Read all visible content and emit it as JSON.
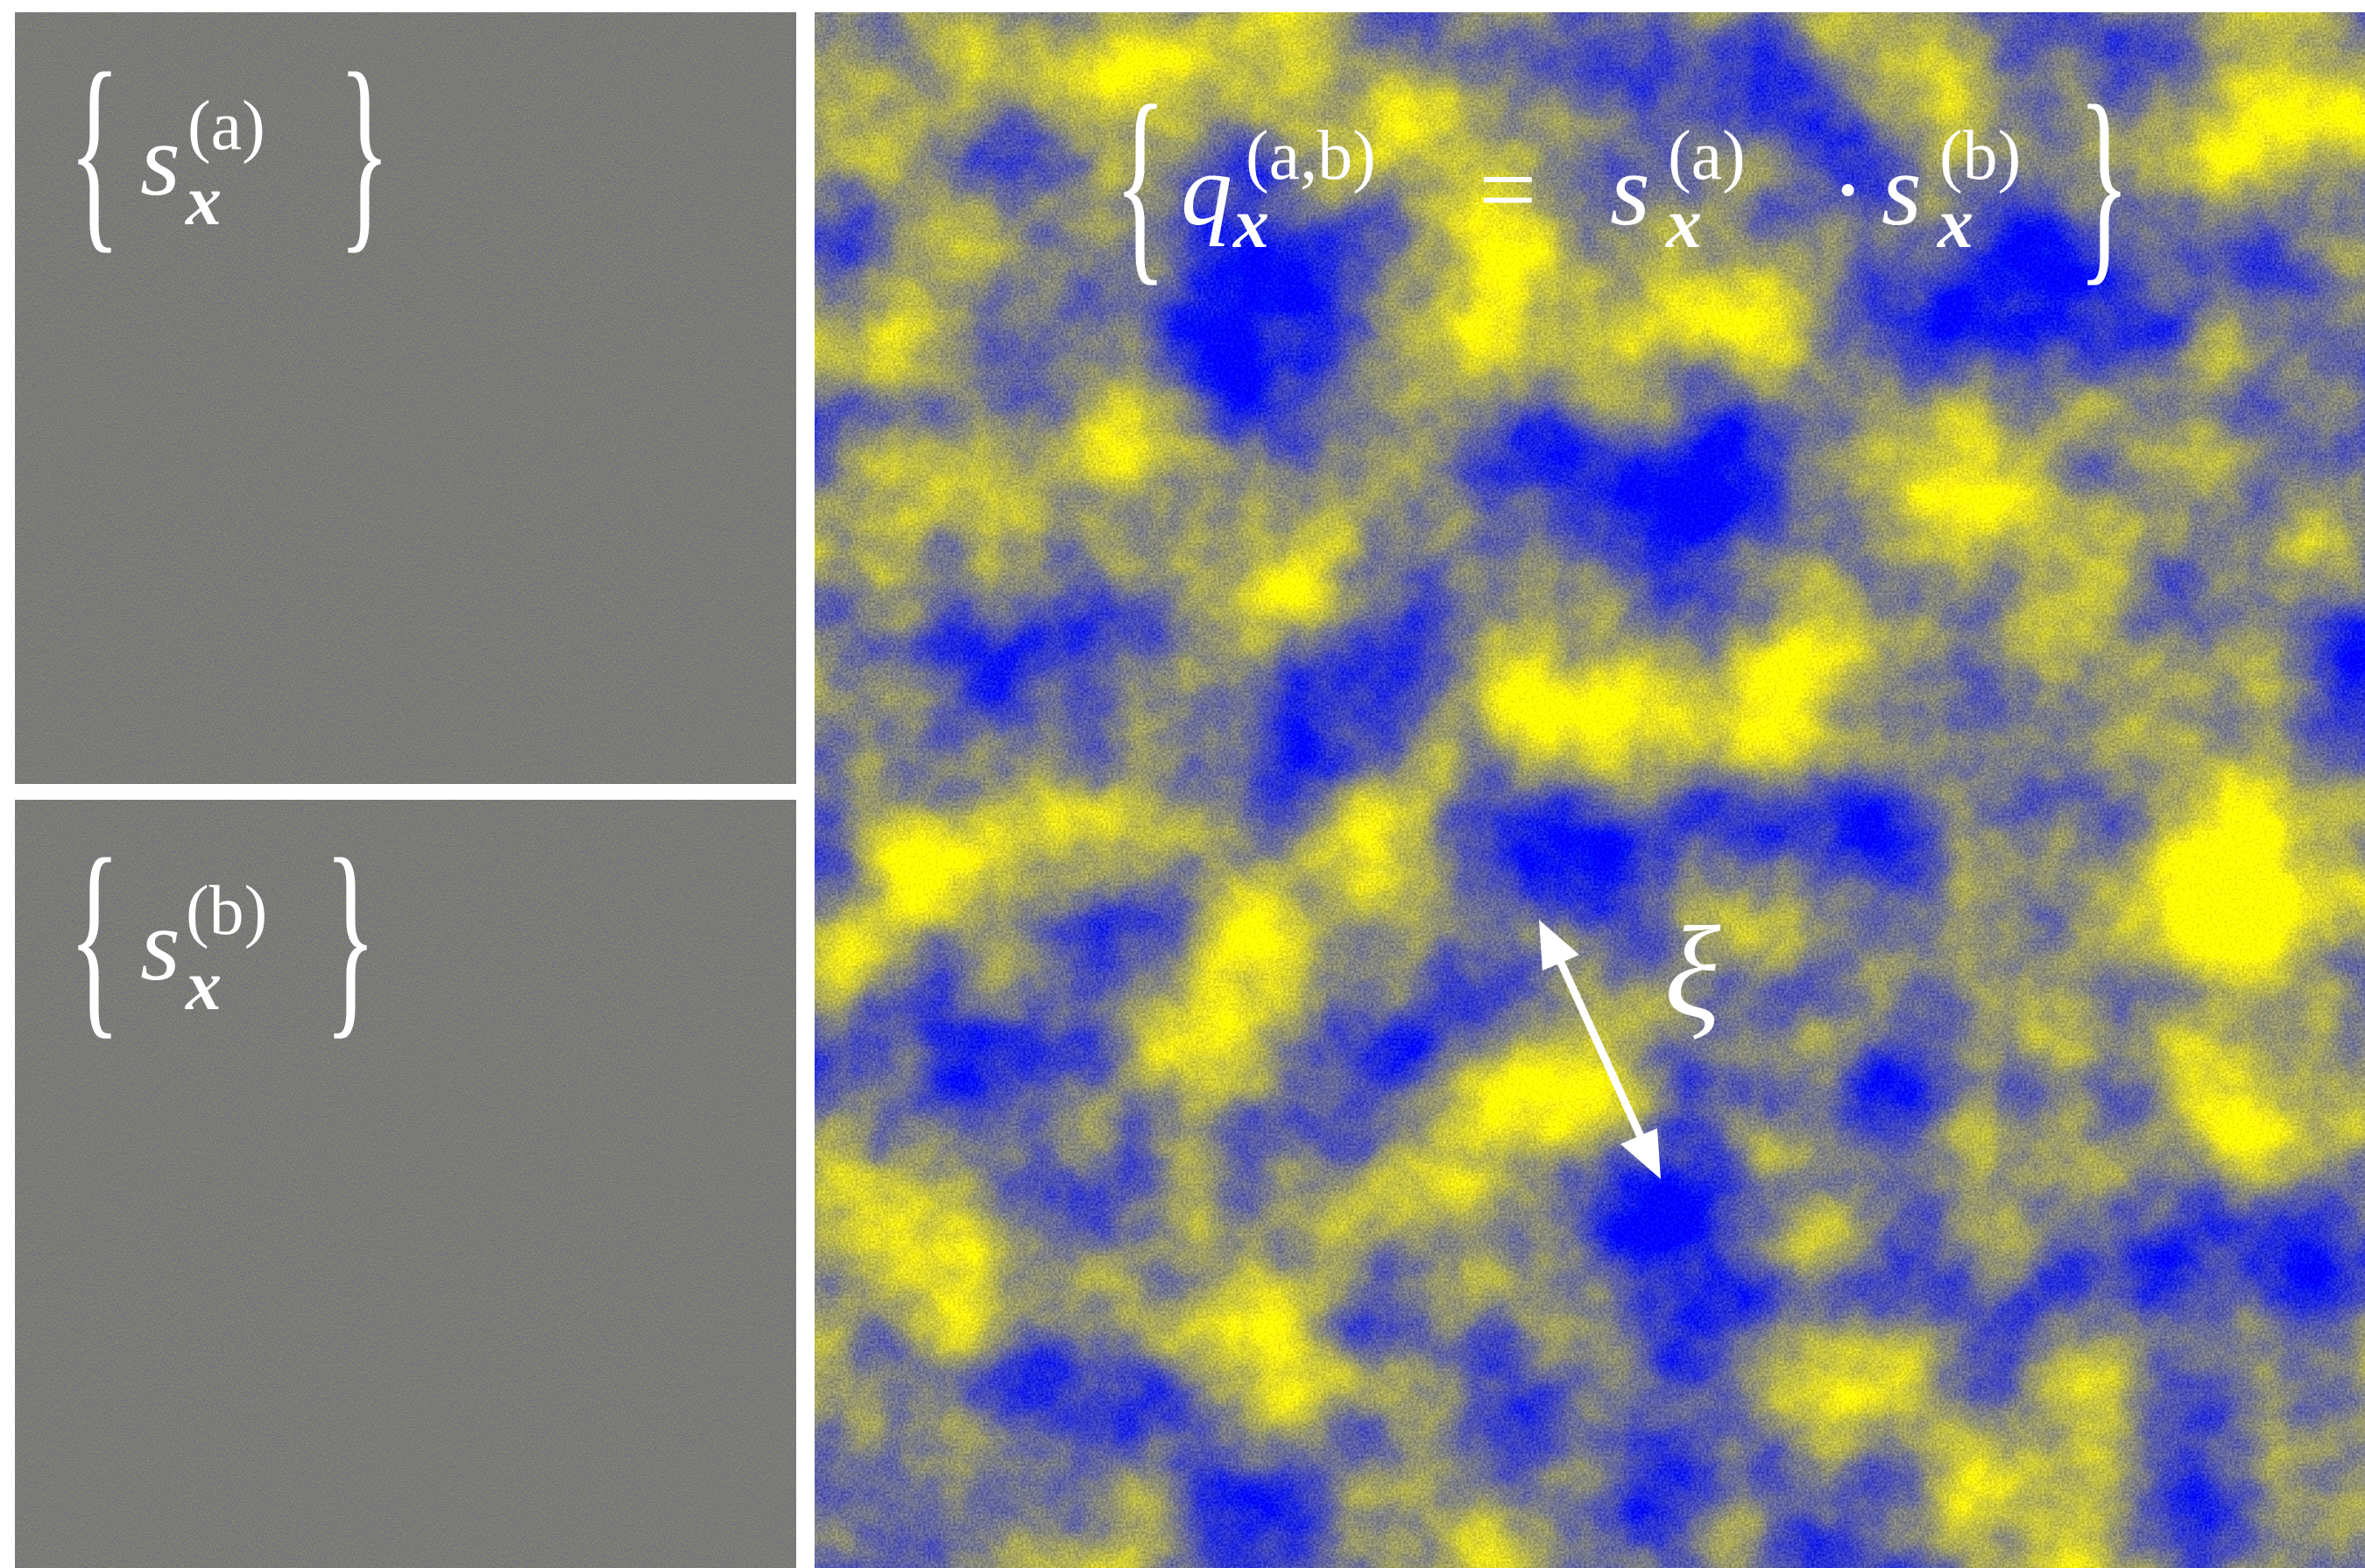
{
  "panels": [
    {
      "open": "{",
      "label": {
        "base": "s",
        "sub": "x",
        "sup": "(a)"
      },
      "close": "}"
    },
    {
      "open": "{",
      "label": {
        "base": "s",
        "sub": "x",
        "sup": "(b)"
      },
      "close": "}"
    },
    {
      "open": "{",
      "terms": [
        {
          "base": "q",
          "sub": "x",
          "sup": "(a,b)"
        },
        "=",
        {
          "base": "s",
          "sub": "x",
          "sup": "(a)"
        },
        "·",
        {
          "base": "s",
          "sub": "x",
          "sup": "(b)"
        }
      ],
      "close": "}",
      "annotation": "ξ"
    }
  ]
}
